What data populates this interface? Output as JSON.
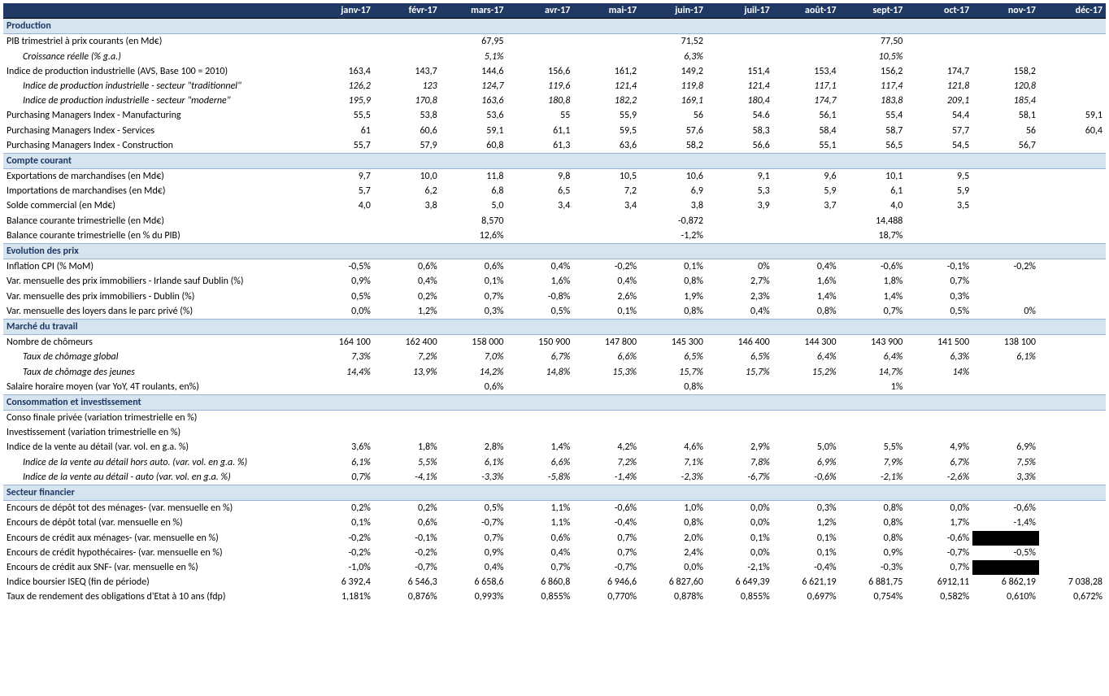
{
  "colors": {
    "header_bg": "#1f3864",
    "header_fg": "#ffffff",
    "section_bg": "#d6e4f0",
    "section_fg": "#1f3864",
    "border": "#7f9db9"
  },
  "months": [
    "janv-17",
    "févr-17",
    "mars-17",
    "avr-17",
    "mai-17",
    "juin-17",
    "juil-17",
    "août-17",
    "sept-17",
    "oct-17",
    "nov-17",
    "déc-17"
  ],
  "sections": [
    {
      "title": "Production",
      "rows": [
        {
          "label": "PIB trimestriel  à prix courants (en Md€)",
          "v": [
            "",
            "",
            "67,95",
            "",
            "",
            "71,52",
            "",
            "",
            "77,50",
            "",
            "",
            ""
          ]
        },
        {
          "label": "Croissance réelle (% g.a.)",
          "sub": true,
          "v": [
            "",
            "",
            "5,1%",
            "",
            "",
            "6,3%",
            "",
            "",
            "10,5%",
            "",
            "",
            ""
          ]
        },
        {
          "label": "Indice de production industrielle (AVS, Base 100 = 2010)",
          "v": [
            "163,4",
            "143,7",
            "144,6",
            "156,6",
            "161,2",
            "149,2",
            "151,4",
            "153,4",
            "156,2",
            "174,7",
            "158,2",
            ""
          ]
        },
        {
          "label": "Indice de production industrielle - secteur \"traditionnel\"",
          "sub": true,
          "v": [
            "126,2",
            "123",
            "124,7",
            "119,6",
            "121,4",
            "119,8",
            "121,4",
            "117,1",
            "117,4",
            "121,8",
            "120,8",
            ""
          ]
        },
        {
          "label": "Indice de production industrielle - secteur \"moderne\"",
          "sub": true,
          "v": [
            "195,9",
            "170,8",
            "163,6",
            "180,8",
            "182,2",
            "169,1",
            "180,4",
            "174,7",
            "183,8",
            "209,1",
            "185,4",
            ""
          ]
        },
        {
          "label": "Purchasing Managers Index - Manufacturing",
          "v": [
            "55,5",
            "53,8",
            "53,6",
            "55",
            "55,9",
            "56",
            "54.6",
            "56,1",
            "55,4",
            "54,4",
            "58,1",
            "59,1"
          ]
        },
        {
          "label": "Purchasing Managers Index - Services",
          "v": [
            "61",
            "60,6",
            "59,1",
            "61,1",
            "59,5",
            "57,6",
            "58,3",
            "58,4",
            "58,7",
            "57,7",
            "56",
            "60,4"
          ]
        },
        {
          "label": "Purchasing Managers Index - Construction",
          "v": [
            "55,7",
            "57,9",
            "60,8",
            "61,3",
            "63,6",
            "58,2",
            "56,6",
            "55,1",
            "56,5",
            "54,5",
            "56,7",
            ""
          ]
        }
      ]
    },
    {
      "title": "Compte courant",
      "rows": [
        {
          "label": "Exportations de marchandises (en Md€)",
          "v": [
            "9,7",
            "10,0",
            "11,8",
            "9,8",
            "10,5",
            "10,6",
            "9,1",
            "9,6",
            "10,1",
            "9,5",
            "",
            ""
          ]
        },
        {
          "label": "Importations de marchandises (en Md€)",
          "v": [
            "5,7",
            "6,2",
            "6,8",
            "6,5",
            "7,2",
            "6,9",
            "5,3",
            "5,9",
            "6,1",
            "5,9",
            "",
            ""
          ]
        },
        {
          "label": "Solde commercial (en Md€)",
          "v": [
            "4,0",
            "3,8",
            "5,0",
            "3,4",
            "3,4",
            "3,8",
            "3,9",
            "3,7",
            "4,0",
            "3,5",
            "",
            ""
          ]
        },
        {
          "label": "Balance courante trimestrielle (en Md€)",
          "v": [
            "",
            "",
            "8,570",
            "",
            "",
            "-0,872",
            "",
            "",
            "14,488",
            "",
            "",
            ""
          ]
        },
        {
          "label": "Balance courante trimestrielle (en % du PIB)",
          "v": [
            "",
            "",
            "12,6%",
            "",
            "",
            "-1,2%",
            "",
            "",
            "18,7%",
            "",
            "",
            ""
          ]
        }
      ]
    },
    {
      "title": "Evolution des prix",
      "rows": [
        {
          "label": "Inflation CPI (% MoM)",
          "v": [
            "-0,5%",
            "0,6%",
            "0,6%",
            "0,4%",
            "-0,2%",
            "0,1%",
            "0%",
            "0,4%",
            "-0,6%",
            "-0,1%",
            "-0,2%",
            ""
          ]
        },
        {
          "label": "Var. mensuelle des prix immobiliers - Irlande sauf Dublin (%)",
          "v": [
            "0,9%",
            "0,4%",
            "0,1%",
            "1,6%",
            "0,4%",
            "0,8%",
            "2,7%",
            "1,6%",
            "1,8%",
            "0,7%",
            "",
            ""
          ]
        },
        {
          "label": "Var. mensuelle des prix immobiliers - Dublin  (%)",
          "v": [
            "0,5%",
            "0,2%",
            "0,7%",
            "-0,8%",
            "2,6%",
            "1,9%",
            "2,3%",
            "1,4%",
            "1,4%",
            "0,3%",
            "",
            ""
          ]
        },
        {
          "label": "Var. mensuelle des loyers dans le parc privé (%)",
          "v": [
            "0,0%",
            "1,2%",
            "0,3%",
            "0,5%",
            "0,1%",
            "0,8%",
            "0,4%",
            "0,8%",
            "0,7%",
            "0,5%",
            "0%",
            ""
          ]
        }
      ]
    },
    {
      "title": "Marché du travail",
      "rows": [
        {
          "label": "Nombre de chômeurs",
          "v": [
            "164 100",
            "162 400",
            "158 000",
            "150 900",
            "147 800",
            "145 300",
            "146 400",
            "144 300",
            "143 900",
            "141 500",
            "138 100",
            ""
          ]
        },
        {
          "label": "Taux de chômage global",
          "sub": true,
          "v": [
            "7,3%",
            "7,2%",
            "7,0%",
            "6,7%",
            "6,6%",
            "6,5%",
            "6,5%",
            "6,4%",
            "6,4%",
            "6,3%",
            "6,1%",
            ""
          ]
        },
        {
          "label": "Taux de chômage des jeunes",
          "sub": true,
          "v": [
            "14,4%",
            "13,9%",
            "14,2%",
            "14,8%",
            "15,3%",
            "15,7%",
            "15,7%",
            "15,2%",
            "14,7%",
            "14%",
            "",
            ""
          ]
        },
        {
          "label": "Salaire horaire moyen (var YoY, 4T roulants, en%)",
          "v": [
            "",
            "",
            "0,6%",
            "",
            "",
            "0,8%",
            "",
            "",
            "1%",
            "",
            "",
            ""
          ]
        }
      ]
    },
    {
      "title": "Consommation et investissement",
      "rows": [
        {
          "label": "Conso finale privée (variation trimestrielle en %)",
          "v": [
            "",
            "",
            "",
            "",
            "",
            "",
            "",
            "",
            "",
            "",
            "",
            ""
          ]
        },
        {
          "label": "Investissement (variation trimestrielle en %)",
          "v": [
            "",
            "",
            "",
            "",
            "",
            "",
            "",
            "",
            "",
            "",
            "",
            ""
          ]
        },
        {
          "label": "Indice de la vente au détail (var. vol. en g.a. %)",
          "v": [
            "3,6%",
            "1,8%",
            "2,8%",
            "1,4%",
            "4,2%",
            "4,6%",
            "2,9%",
            "5,0%",
            "5,5%",
            "4,9%",
            "6,9%",
            ""
          ]
        },
        {
          "label": "Indice de la vente au détail hors auto. (var. vol. en g.a. %)",
          "sub": true,
          "v": [
            "6,1%",
            "5,5%",
            "6,1%",
            "6,6%",
            "7,2%",
            "7,1%",
            "7,8%",
            "6,9%",
            "7,9%",
            "6,7%",
            "7,5%",
            ""
          ]
        },
        {
          "label": "Indice de la vente au détail - auto (var. vol. en g.a. %)",
          "sub": true,
          "v": [
            "0,7%",
            "-4,1%",
            "-3,3%",
            "-5,8%",
            "-1,4%",
            "-2,3%",
            "-6,7%",
            "-0,6%",
            "-2,1%",
            "-2,6%",
            "3,3%",
            ""
          ]
        }
      ]
    },
    {
      "title": "Secteur financier",
      "rows": [
        {
          "label": "Encours de dépôt tot des ménages- (var. mensuelle en %)",
          "v": [
            "0,2%",
            "0,2%",
            "0,5%",
            "1,1%",
            "-0,6%",
            "1,0%",
            "0,0%",
            "0,3%",
            "0,8%",
            "0,0%",
            "-0,6%",
            ""
          ]
        },
        {
          "label": "Encours de dépôt total (var. mensuelle en %)",
          "v": [
            "0,1%",
            "0,6%",
            "-0,7%",
            "1,1%",
            "-0,4%",
            "0,8%",
            "0,0%",
            "1,2%",
            "0,8%",
            "1,7%",
            "-1,4%",
            ""
          ]
        },
        {
          "label": "Encours de crédit aux ménages- (var. mensuelle en %)",
          "v": [
            "-0,2%",
            "-0,1%",
            "0,7%",
            "0,6%",
            "0,7%",
            "2,0%",
            "0,1%",
            "0,1%",
            "0,8%",
            "-0,6%",
            "",
            ""
          ],
          "blackout": [
            10
          ]
        },
        {
          "label": "Encours de crédit hypothécaires- (var. mensuelle en %)",
          "v": [
            "-0,2%",
            "-0,2%",
            "0,9%",
            "0,4%",
            "0,7%",
            "2,4%",
            "0,0%",
            "0,1%",
            "0,9%",
            "-0,7%",
            "-0,5%",
            ""
          ]
        },
        {
          "label": "Encours de crédit aux SNF- (var. mensuelle en %)",
          "v": [
            "-1,0%",
            "-0,7%",
            "0,4%",
            "0,7%",
            "-0,7%",
            "0,0%",
            "-2,1%",
            "-0,4%",
            "-0,3%",
            "0,7%",
            "",
            ""
          ],
          "blackout": [
            10
          ]
        },
        {
          "label": "Indice boursier ISEQ (fin de période)",
          "v": [
            "6 392,4",
            "6 546,3",
            "6 658,6",
            "6 860,8",
            "6 946,6",
            "6 827,60",
            "6 649,39",
            "6 621,19",
            "6 881,75",
            "6912,11",
            "6 862,19",
            "7 038,28"
          ]
        },
        {
          "label": "Taux de rendement des obligations d'Etat à 10 ans (fdp)",
          "v": [
            "1,181%",
            "0,876%",
            "0,993%",
            "0,855%",
            "0,770%",
            "0,878%",
            "0,855%",
            "0,697%",
            "0,754%",
            "0,582%",
            "0,610%",
            "0,672%"
          ]
        }
      ]
    }
  ]
}
